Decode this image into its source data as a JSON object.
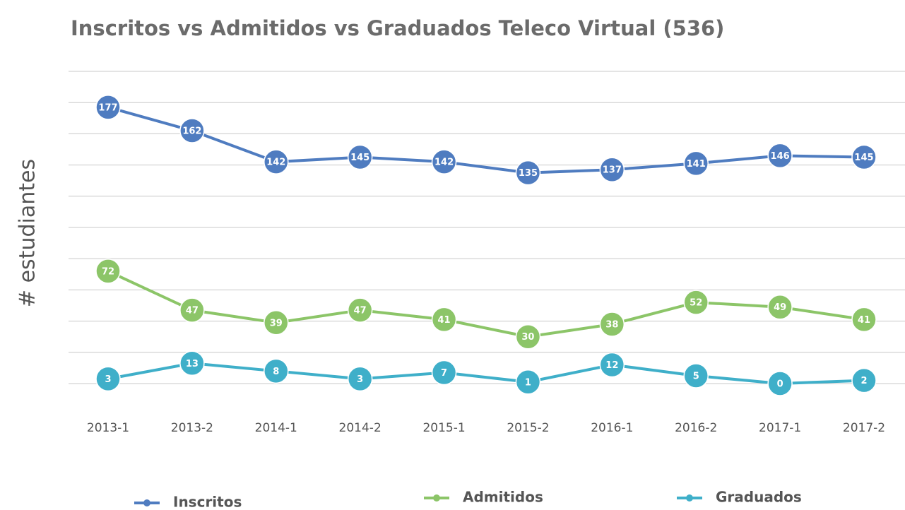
{
  "chart_data": {
    "type": "line",
    "title": "Inscritos vs Admitidos vs Graduados Teleco Virtual (536)",
    "y_label": "# estudiantes",
    "categories": [
      "2013-1",
      "2013-2",
      "2014-1",
      "2014-2",
      "2015-1",
      "2015-2",
      "2016-1",
      "2016-2",
      "2017-1",
      "2017-2"
    ],
    "series": [
      {
        "name": "Inscritos",
        "color": "#4f7cc0",
        "values": [
          177,
          162,
          142,
          145,
          142,
          135,
          137,
          141,
          146,
          145
        ]
      },
      {
        "name": "Admitidos",
        "color": "#8cc568",
        "values": [
          72,
          47,
          39,
          47,
          41,
          30,
          38,
          52,
          49,
          41
        ]
      },
      {
        "name": "Graduados",
        "color": "#3fafc9",
        "values": [
          3,
          13,
          8,
          3,
          7,
          1,
          12,
          5,
          0,
          2
        ]
      }
    ],
    "ylim": [
      0,
      200
    ],
    "yticks": [
      0,
      20,
      40,
      60,
      80,
      100,
      120,
      140,
      160,
      180,
      200
    ],
    "grid": true,
    "legend": "bottom"
  }
}
